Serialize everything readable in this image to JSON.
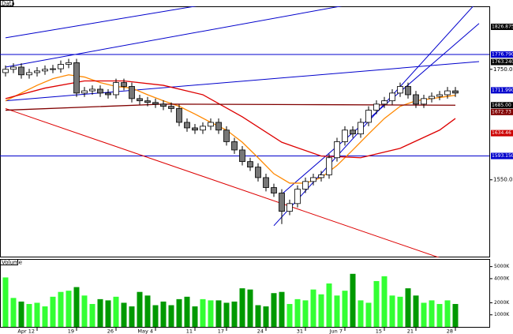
{
  "chart_data": {
    "type": "candlestick",
    "title": "Data",
    "categories": [
      null,
      null,
      null,
      null,
      "Apr 12",
      null,
      null,
      null,
      null,
      "19",
      null,
      null,
      null,
      null,
      "26",
      null,
      null,
      null,
      null,
      "May 4",
      null,
      null,
      null,
      null,
      "11",
      null,
      null,
      null,
      "17",
      null,
      null,
      null,
      null,
      "24",
      null,
      null,
      null,
      null,
      "31",
      null,
      null,
      null,
      null,
      "Jun 7",
      null,
      null,
      null,
      null,
      "15",
      null,
      null,
      null,
      "21",
      null,
      null,
      null,
      null,
      "28"
    ],
    "open": [
      1744,
      1750,
      1754,
      1740,
      1744,
      1747,
      1750,
      1751,
      1759,
      1762,
      1707,
      1711,
      1714,
      1707,
      1704,
      1726,
      1719,
      1697,
      1693,
      1690,
      1687,
      1683,
      1679,
      1654,
      1644,
      1640,
      1647,
      1654,
      1640,
      1619,
      1604,
      1583,
      1573,
      1554,
      1536,
      1526,
      1493,
      1507,
      1533,
      1547,
      1554,
      1559,
      1590,
      1619,
      1640,
      1633,
      1654,
      1676,
      1687,
      1693,
      1707,
      1719,
      1704,
      1687,
      1697,
      1701,
      1704,
      1711
    ],
    "high": [
      1757,
      1761,
      1761,
      1751,
      1754,
      1757,
      1758,
      1766,
      1769,
      1769,
      1718,
      1721,
      1721,
      1714,
      1733,
      1733,
      1726,
      1704,
      1700,
      1697,
      1694,
      1690,
      1686,
      1661,
      1651,
      1654,
      1661,
      1661,
      1647,
      1626,
      1611,
      1590,
      1580,
      1561,
      1543,
      1533,
      1514,
      1540,
      1554,
      1561,
      1566,
      1597,
      1626,
      1647,
      1647,
      1661,
      1683,
      1694,
      1700,
      1714,
      1726,
      1726,
      1711,
      1704,
      1708,
      1711,
      1718,
      1718
    ],
    "low": [
      1737,
      1743,
      1733,
      1733,
      1737,
      1740,
      1743,
      1744,
      1752,
      1700,
      1700,
      1704,
      1700,
      1697,
      1697,
      1712,
      1690,
      1686,
      1683,
      1680,
      1676,
      1672,
      1647,
      1637,
      1633,
      1633,
      1640,
      1633,
      1612,
      1597,
      1576,
      1566,
      1547,
      1529,
      1519,
      1470,
      1486,
      1500,
      1526,
      1540,
      1547,
      1552,
      1583,
      1612,
      1626,
      1626,
      1647,
      1669,
      1680,
      1686,
      1700,
      1697,
      1680,
      1680,
      1690,
      1694,
      1697,
      1700
    ],
    "close": [
      1750,
      1754,
      1740,
      1744,
      1747,
      1750,
      1751,
      1759,
      1762,
      1707,
      1711,
      1714,
      1707,
      1704,
      1726,
      1719,
      1697,
      1693,
      1690,
      1687,
      1683,
      1679,
      1654,
      1644,
      1640,
      1647,
      1654,
      1640,
      1619,
      1604,
      1583,
      1573,
      1554,
      1536,
      1526,
      1493,
      1507,
      1533,
      1547,
      1554,
      1559,
      1590,
      1619,
      1640,
      1633,
      1654,
      1676,
      1687,
      1693,
      1707,
      1719,
      1704,
      1687,
      1697,
      1701,
      1704,
      1711,
      1707
    ],
    "up_color": "#ffffff",
    "down_color": "#777777",
    "ylim": [
      1411,
      1864
    ],
    "yticks": [
      {
        "value": 1550,
        "label": "1550.00"
      },
      {
        "value": 1750,
        "label": "1750.00"
      }
    ],
    "levels": [
      {
        "value": 1826.875,
        "label": "1826.8750",
        "color": "#000000",
        "line": false
      },
      {
        "value": 1776.79,
        "label": "1776.7900",
        "color": "#0000cc",
        "line": true
      },
      {
        "value": 1763.24,
        "label": "1763.2400",
        "color": "#000000",
        "line": false
      },
      {
        "value": 1711.99,
        "label": "1711.9900",
        "color": "#0000cc",
        "line": false
      },
      {
        "value": 1685,
        "label": "1685.00",
        "color": "#000000",
        "line": false
      },
      {
        "value": 1672.73,
        "label": "1672.73",
        "color": "#800000",
        "line": false
      },
      {
        "value": 1634.46,
        "label": "1634.46",
        "color": "#cc0000",
        "line": false
      },
      {
        "value": 1593.15,
        "label": "1593.1500",
        "color": "#0000cc",
        "line": true
      }
    ],
    "overlays": [
      {
        "color": "#ff8800",
        "x": [
          0,
          2,
          4,
          6,
          8,
          10,
          12,
          14,
          16,
          18,
          20,
          22,
          24,
          26,
          28,
          30,
          32,
          34,
          36,
          38,
          40,
          42,
          44,
          46,
          48,
          50,
          52,
          54,
          56,
          57
        ],
        "values": [
          1693,
          1707,
          1721,
          1733,
          1740,
          1736,
          1726,
          1719,
          1716,
          1704,
          1693,
          1683,
          1669,
          1654,
          1640,
          1618,
          1590,
          1561,
          1544,
          1544,
          1554,
          1576,
          1604,
          1633,
          1661,
          1683,
          1693,
          1697,
          1701,
          1703
        ]
      },
      {
        "color": "#dd0000",
        "x": [
          0,
          5,
          10,
          15,
          20,
          25,
          30,
          35,
          40,
          45,
          50,
          55,
          57
        ],
        "values": [
          1697,
          1716,
          1729,
          1729,
          1721,
          1704,
          1664,
          1618,
          1593,
          1590,
          1607,
          1640,
          1661
        ]
      },
      {
        "color": "#800000",
        "x": [
          0,
          20,
          40,
          57
        ],
        "values": [
          1676,
          1687,
          1686,
          1685
        ]
      }
    ],
    "trendlines": [
      {
        "color": "#0000cc",
        "x": [
          0,
          29
        ],
        "values": [
          1807,
          1876
        ]
      },
      {
        "color": "#0000cc",
        "x": [
          0,
          47
        ],
        "values": [
          1754,
          1876
        ]
      },
      {
        "color": "#dd0000",
        "x": [
          0,
          56
        ],
        "values": [
          1679,
          1404
        ]
      },
      {
        "color": "#0000cc",
        "x": [
          34,
          60
        ],
        "values": [
          1467,
          1876
        ]
      },
      {
        "color": "#0000cc",
        "x": [
          35,
          60
        ],
        "values": [
          1524,
          1833
        ]
      },
      {
        "color": "#0000cc",
        "x": [
          0,
          60
        ],
        "values": [
          1693,
          1764
        ]
      }
    ],
    "volume": {
      "title": "Volume",
      "values": [
        4100,
        2400,
        2100,
        1900,
        2000,
        1700,
        2500,
        2900,
        3000,
        3300,
        2600,
        1900,
        2300,
        2200,
        2500,
        2000,
        1700,
        2900,
        2600,
        1800,
        2100,
        1800,
        2300,
        2500,
        1700,
        2300,
        2200,
        2200,
        2000,
        2100,
        3200,
        3100,
        1800,
        1700,
        2800,
        2900,
        1900,
        2300,
        2200,
        3100,
        2700,
        3600,
        2600,
        3000,
        4400,
        2200,
        2000,
        3800,
        4200,
        2600,
        2500,
        3200,
        2600,
        2000,
        2200,
        1900,
        2200,
        1900
      ],
      "up_color": "#33ff33",
      "down_color": "#009900",
      "ylim": [
        0,
        5500
      ],
      "yticks": [
        {
          "value": 1000,
          "label": "1000K"
        },
        {
          "value": 2000,
          "label": "2000K"
        },
        {
          "value": 4000,
          "label": "4000K"
        },
        {
          "value": 5000,
          "label": "5000K"
        }
      ]
    }
  }
}
